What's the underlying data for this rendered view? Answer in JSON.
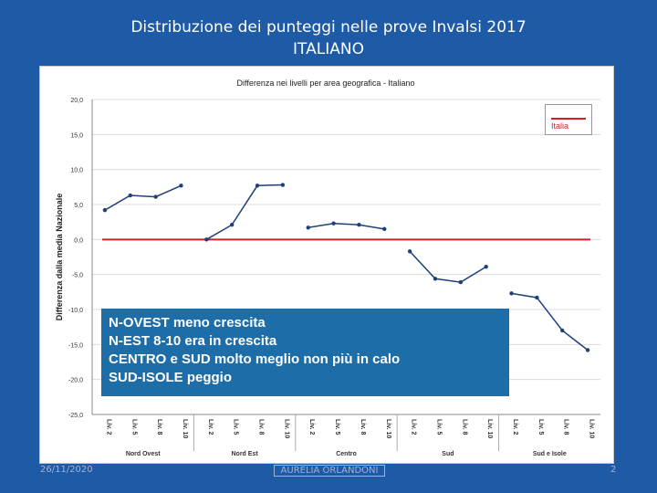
{
  "slide": {
    "title_line1": "Distribuzione dei punteggi nelle prove Invalsi 2017",
    "title_line2": "ITALIANO"
  },
  "chart_data": {
    "type": "line",
    "title": "Differenza nei livelli per area geografica - Italiano",
    "ylabel": "Differenza dalla media Nazionale",
    "ylim": [
      -25,
      20
    ],
    "yticks": [
      20,
      15,
      10,
      5,
      0,
      -5,
      -10,
      -15,
      -20,
      -25
    ],
    "ytick_labels": [
      "20,0",
      "15,0",
      "10,0",
      "5,0",
      "0,0",
      "-5,0",
      "-10,0",
      "-15,0",
      "-20,0",
      "-25,0"
    ],
    "grid": true,
    "legend_position": "top-right",
    "reference_line": {
      "name": "Italia",
      "value": 0,
      "color": "#cc2222"
    },
    "levels": [
      "Liv. 2",
      "Liv. 5",
      "Liv. 8",
      "Liv. 10"
    ],
    "series_color": "#1f3f7a",
    "groups": [
      {
        "name": "Nord Ovest",
        "values": [
          4.2,
          6.3,
          6.1,
          7.7
        ]
      },
      {
        "name": "Nord Est",
        "values": [
          0.0,
          2.1,
          7.7,
          7.8
        ]
      },
      {
        "name": "Centro",
        "values": [
          1.7,
          2.3,
          2.1,
          1.5
        ]
      },
      {
        "name": "Sud",
        "values": [
          -1.7,
          -5.6,
          -6.1,
          -3.9
        ]
      },
      {
        "name": "Sud e Isole",
        "values": [
          -7.7,
          -8.3,
          -13.0,
          -15.8
        ]
      }
    ]
  },
  "callout": {
    "lines": [
      "N-OVEST meno crescita",
      "N-EST 8-10 era in crescita",
      "CENTRO e SUD molto meglio non più in calo",
      "SUD-ISOLE  peggio"
    ]
  },
  "footer": {
    "date": "26/11/2020",
    "author": "AURELIA ORLANDONI",
    "page": "2"
  }
}
